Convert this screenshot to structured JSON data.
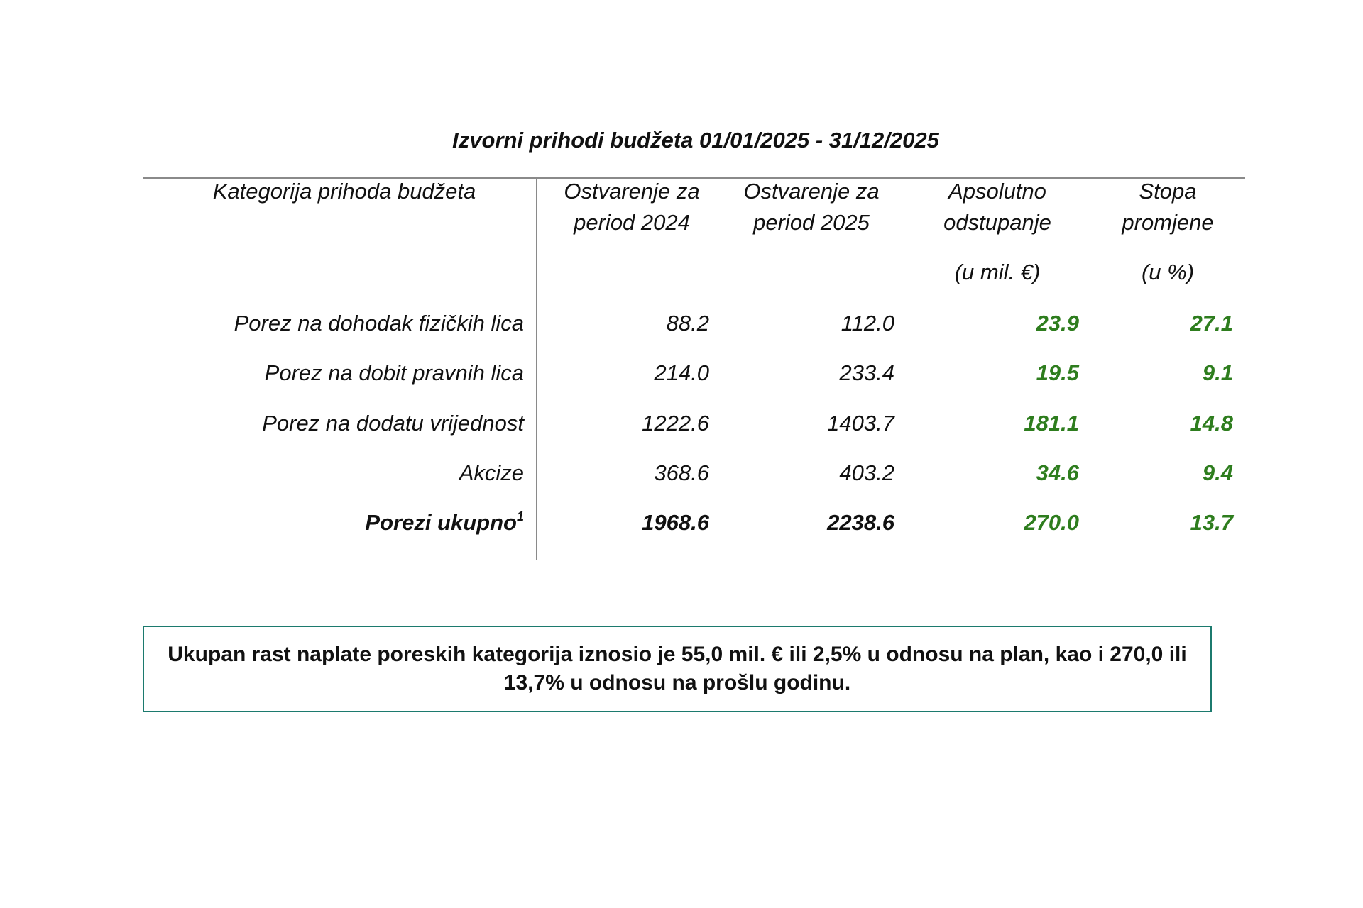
{
  "title": "Izvorni prihodi budžeta 01/01/2025 - 31/12/2025",
  "table": {
    "headers": {
      "category": "Kategorija prihoda budžeta",
      "col_2024": [
        "Ostvarenje za",
        "period 2024"
      ],
      "col_2025": [
        "Ostvarenje za",
        "period 2025"
      ],
      "col_abs": [
        "Apsolutno",
        "odstupanje"
      ],
      "col_rate": [
        "Stopa",
        "promjene"
      ],
      "unit_abs": "(u mil. €)",
      "unit_rate": "(u %)"
    },
    "rows": [
      {
        "label": "Porez na dohodak fizičkih lica",
        "v2024": "88.2",
        "v2025": "112.0",
        "abs": "23.9",
        "rate": "27.1"
      },
      {
        "label": "Porez na dobit pravnih lica",
        "v2024": "214.0",
        "v2025": "233.4",
        "abs": "19.5",
        "rate": "9.1"
      },
      {
        "label": "Porez na dodatu vrijednost",
        "v2024": "1222.6",
        "v2025": "1403.7",
        "abs": "181.1",
        "rate": "14.8"
      },
      {
        "label": "Akcize",
        "v2024": "368.6",
        "v2025": "403.2",
        "abs": "34.6",
        "rate": "9.4"
      }
    ],
    "total": {
      "label": "Porezi ukupno",
      "footnote": "1",
      "v2024": "1968.6",
      "v2025": "2238.6",
      "abs": "270.0",
      "rate": "13.7"
    }
  },
  "summary": "Ukupan rast naplate poreskih kategorija iznosio je 55,0 mil. € ili 2,5% u odnosu na plan, kao i 270,0 ili 13,7% u odnosu na prošlu godinu.",
  "colors": {
    "positive": "#2e7d1e",
    "box_border": "#1c7a6e",
    "rule": "#8a8a8a"
  }
}
